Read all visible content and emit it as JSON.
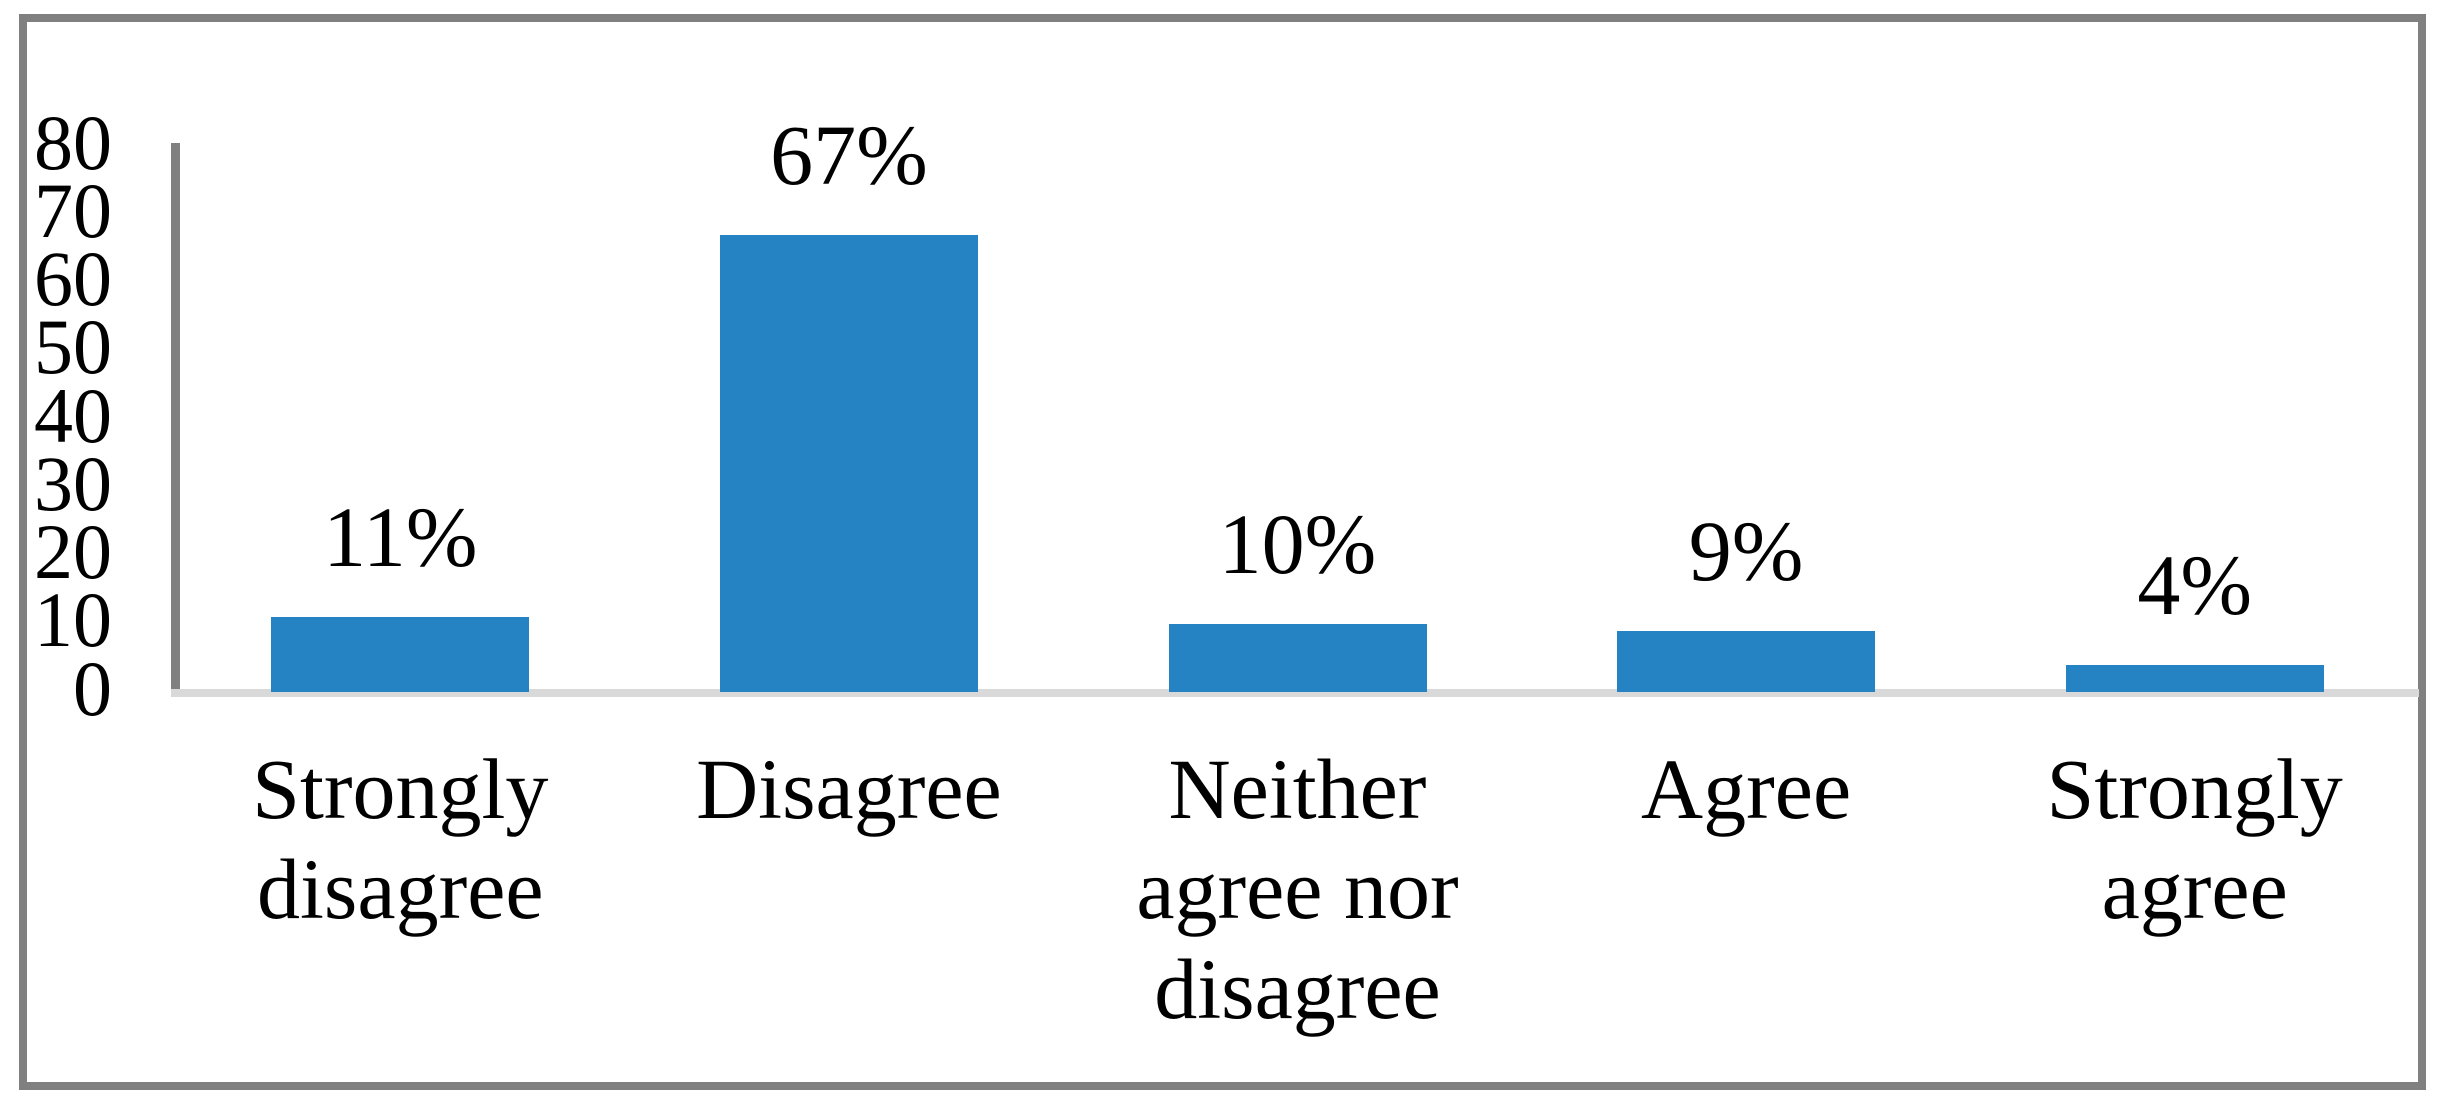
{
  "figure": {
    "background_color": "#FFFFFF",
    "frame_color": "#808080",
    "axis_line_color": "#808080",
    "baseline_color": "#D9D9D9",
    "bar_color": "#2583C4",
    "text_color": "#000000"
  },
  "chart_data": {
    "type": "bar",
    "title": "",
    "xlabel": "",
    "ylabel": "",
    "categories": [
      "Strongly disagree",
      "Disagree",
      "Neither agree nor disagree",
      "Agree",
      "Strongly agree"
    ],
    "values": [
      11,
      67,
      10,
      9,
      4
    ],
    "data_labels": [
      "11%",
      "67%",
      "10%",
      "9%",
      "4%"
    ],
    "ylim": [
      0,
      80
    ],
    "yticks": [
      0,
      10,
      20,
      30,
      40,
      50,
      60,
      70,
      80
    ],
    "grid": false,
    "legend": false,
    "bar_color": "#2583C4"
  }
}
